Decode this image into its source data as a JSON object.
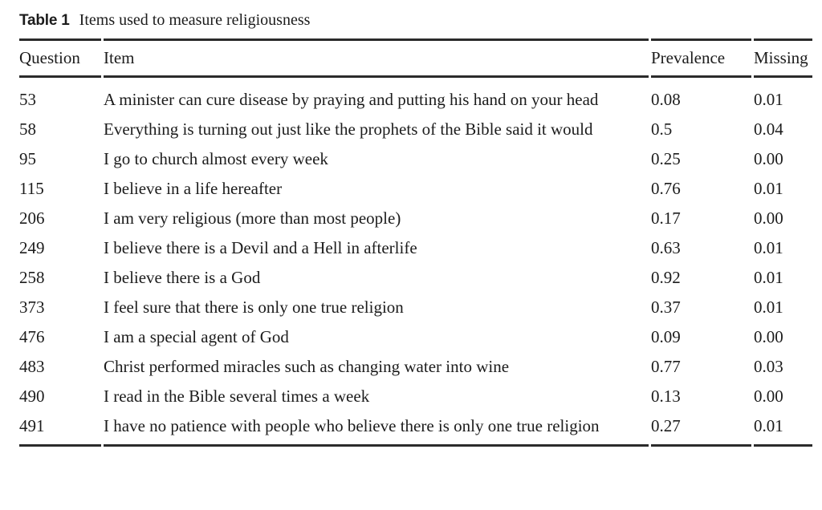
{
  "table": {
    "label": "Table 1",
    "caption": "Items used to measure religiousness",
    "columns": [
      "Question",
      "Item",
      "Prevalence",
      "Missing"
    ],
    "rows": [
      {
        "question": "53",
        "item": "A minister can cure disease by praying and putting his hand on your head",
        "prevalence": "0.08",
        "missing": "0.01"
      },
      {
        "question": "58",
        "item": "Everything is turning out just like the prophets of the Bible said it would",
        "prevalence": "0.5",
        "missing": "0.04"
      },
      {
        "question": "95",
        "item": "I go to church almost every week",
        "prevalence": "0.25",
        "missing": "0.00"
      },
      {
        "question": "115",
        "item": "I believe in a life hereafter",
        "prevalence": "0.76",
        "missing": "0.01"
      },
      {
        "question": "206",
        "item": "I am very religious (more than most people)",
        "prevalence": "0.17",
        "missing": "0.00"
      },
      {
        "question": "249",
        "item": "I believe there is a Devil and a Hell in afterlife",
        "prevalence": "0.63",
        "missing": "0.01"
      },
      {
        "question": "258",
        "item": "I believe there is a God",
        "prevalence": "0.92",
        "missing": "0.01"
      },
      {
        "question": "373",
        "item": "I feel sure that there is only one true religion",
        "prevalence": "0.37",
        "missing": "0.01"
      },
      {
        "question": "476",
        "item": "I am a special agent of God",
        "prevalence": "0.09",
        "missing": "0.00"
      },
      {
        "question": "483",
        "item": "Christ performed miracles such as changing water into wine",
        "prevalence": "0.77",
        "missing": "0.03"
      },
      {
        "question": "490",
        "item": "I read in the Bible several times a week",
        "prevalence": "0.13",
        "missing": "0.00"
      },
      {
        "question": "491",
        "item": "I have no patience with people who believe there is only one true religion",
        "prevalence": "0.27",
        "missing": "0.01"
      }
    ]
  }
}
